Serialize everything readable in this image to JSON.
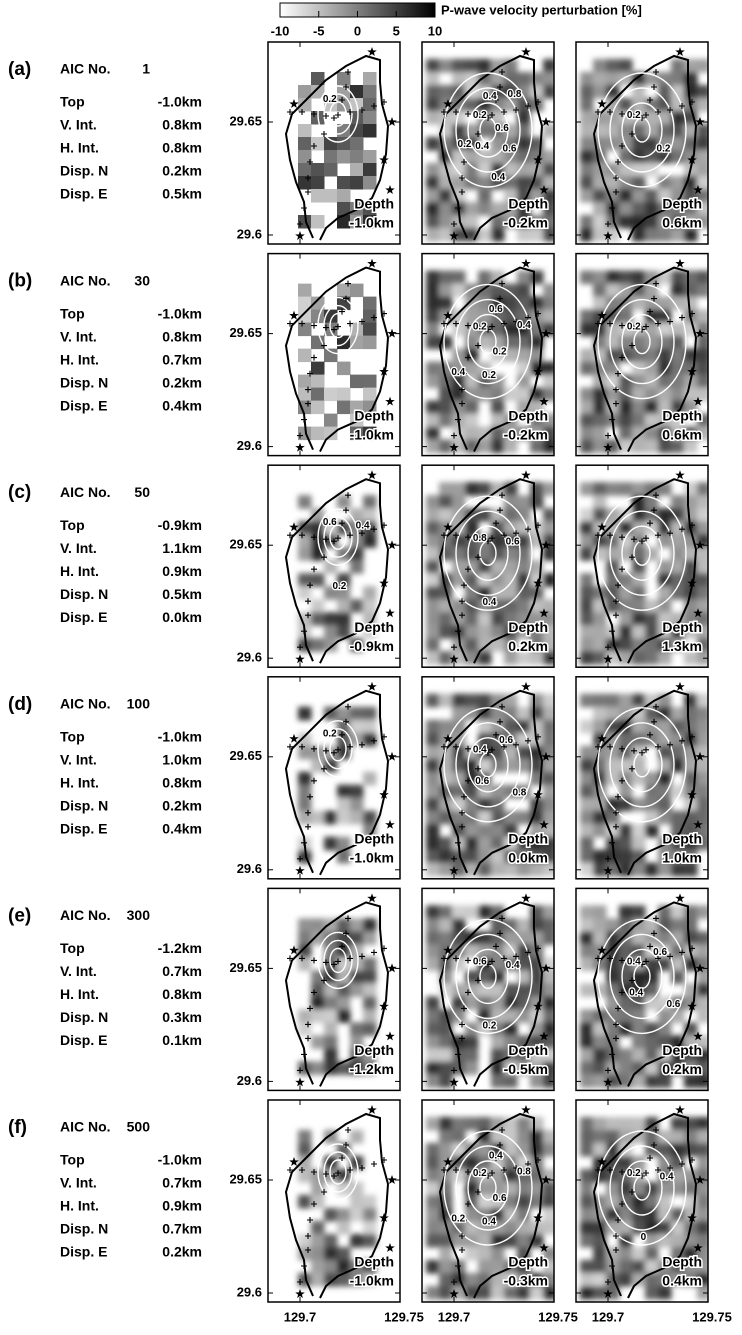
{
  "colorbar": {
    "title": "P-wave velocity perturbation [%]",
    "ticks": [
      "-10",
      "-5",
      "0",
      "5",
      "10"
    ]
  },
  "x_ticks": [
    "129.7",
    "129.75"
  ],
  "rows": [
    {
      "label": "(a)",
      "aic_label": "AIC No.",
      "aic": "1",
      "params": [
        [
          "Top",
          "-1.0km"
        ],
        [
          "V. Int.",
          "0.8km"
        ],
        [
          "H. Int.",
          "0.8km"
        ],
        [
          "Disp. N",
          "0.2km"
        ],
        [
          "Disp. E",
          "0.5km"
        ]
      ],
      "y_ticks": [
        "29.65",
        "29.6"
      ],
      "panels": [
        {
          "depth_label": "Depth",
          "depth": "-1.0km",
          "contours": [
            "0.2"
          ]
        },
        {
          "depth_label": "Depth",
          "depth": "-0.2km",
          "contours": [
            "0.2",
            "0.4",
            "0.8",
            "0.6",
            "0.6",
            "0.4",
            "0.4",
            "0.2"
          ]
        },
        {
          "depth_label": "Depth",
          "depth": "0.6km",
          "contours": [
            "0.2",
            "0.2"
          ]
        }
      ]
    },
    {
      "label": "(b)",
      "aic_label": "AIC No.",
      "aic": "30",
      "params": [
        [
          "Top",
          "-1.0km"
        ],
        [
          "V. Int.",
          "0.8km"
        ],
        [
          "H. Int.",
          "0.7km"
        ],
        [
          "Disp. N",
          "0.2km"
        ],
        [
          "Disp. E",
          "0.4km"
        ]
      ],
      "y_ticks": [
        "29.65",
        "29.6"
      ],
      "panels": [
        {
          "depth_label": "Depth",
          "depth": "-1.0km",
          "contours": []
        },
        {
          "depth_label": "Depth",
          "depth": "-0.2km",
          "contours": [
            "0.2",
            "0.6",
            "0.4",
            "0.2",
            "0.2",
            "0.4"
          ]
        },
        {
          "depth_label": "Depth",
          "depth": "0.6km",
          "contours": [
            "0.2"
          ]
        }
      ]
    },
    {
      "label": "(c)",
      "aic_label": "AIC No.",
      "aic": "50",
      "params": [
        [
          "Top",
          "-0.9km"
        ],
        [
          "V. Int.",
          "1.1km"
        ],
        [
          "H. Int.",
          "0.9km"
        ],
        [
          "Disp. N",
          "0.5km"
        ],
        [
          "Disp. E",
          "0.0km"
        ]
      ],
      "y_ticks": [
        "29.65",
        "29.6"
      ],
      "panels": [
        {
          "depth_label": "Depth",
          "depth": "-0.9km",
          "contours": [
            "0.6",
            "0.4",
            "0.2"
          ]
        },
        {
          "depth_label": "Depth",
          "depth": "0.2km",
          "contours": [
            "0.8",
            "0.6",
            "0.4"
          ]
        },
        {
          "depth_label": "Depth",
          "depth": "1.3km",
          "contours": []
        }
      ]
    },
    {
      "label": "(d)",
      "aic_label": "AIC No.",
      "aic": "100",
      "params": [
        [
          "Top",
          "-1.0km"
        ],
        [
          "V. Int.",
          "1.0km"
        ],
        [
          "H. Int.",
          "0.8km"
        ],
        [
          "Disp. N",
          "0.2km"
        ],
        [
          "Disp. E",
          "0.4km"
        ]
      ],
      "y_ticks": [
        "29.65",
        "29.6"
      ],
      "panels": [
        {
          "depth_label": "Depth",
          "depth": "-1.0km",
          "contours": [
            "0.2"
          ]
        },
        {
          "depth_label": "Depth",
          "depth": "0.0km",
          "contours": [
            "0.4",
            "0.6",
            "0.8",
            "0.6"
          ]
        },
        {
          "depth_label": "Depth",
          "depth": "1.0km",
          "contours": []
        }
      ]
    },
    {
      "label": "(e)",
      "aic_label": "AIC No.",
      "aic": "300",
      "params": [
        [
          "Top",
          "-1.2km"
        ],
        [
          "V. Int.",
          "0.7km"
        ],
        [
          "H. Int.",
          "0.8km"
        ],
        [
          "Disp. N",
          "0.3km"
        ],
        [
          "Disp. E",
          "0.1km"
        ]
      ],
      "y_ticks": [
        "29.65",
        "29.6"
      ],
      "panels": [
        {
          "depth_label": "Depth",
          "depth": "-1.2km",
          "contours": []
        },
        {
          "depth_label": "Depth",
          "depth": "-0.5km",
          "contours": [
            "0.6",
            "0.4",
            "0.2"
          ]
        },
        {
          "depth_label": "Depth",
          "depth": "0.2km",
          "contours": [
            "0.4",
            "0.6",
            "0.6",
            "0.4"
          ]
        }
      ]
    },
    {
      "label": "(f)",
      "aic_label": "AIC No.",
      "aic": "500",
      "params": [
        [
          "Top",
          "-1.0km"
        ],
        [
          "V. Int.",
          "0.7km"
        ],
        [
          "H. Int.",
          "0.9km"
        ],
        [
          "Disp. N",
          "0.7km"
        ],
        [
          "Disp. E",
          "0.2km"
        ]
      ],
      "y_ticks": [
        "29.65",
        "29.6"
      ],
      "panels": [
        {
          "depth_label": "Depth",
          "depth": "-1.0km",
          "contours": []
        },
        {
          "depth_label": "Depth",
          "depth": "-0.3km",
          "contours": [
            "0.2",
            "0.4",
            "0.8",
            "0.6",
            "0.4",
            "0.2"
          ]
        },
        {
          "depth_label": "Depth",
          "depth": "0.4km",
          "contours": [
            "0.2",
            "0.4",
            "0"
          ]
        }
      ]
    }
  ]
}
